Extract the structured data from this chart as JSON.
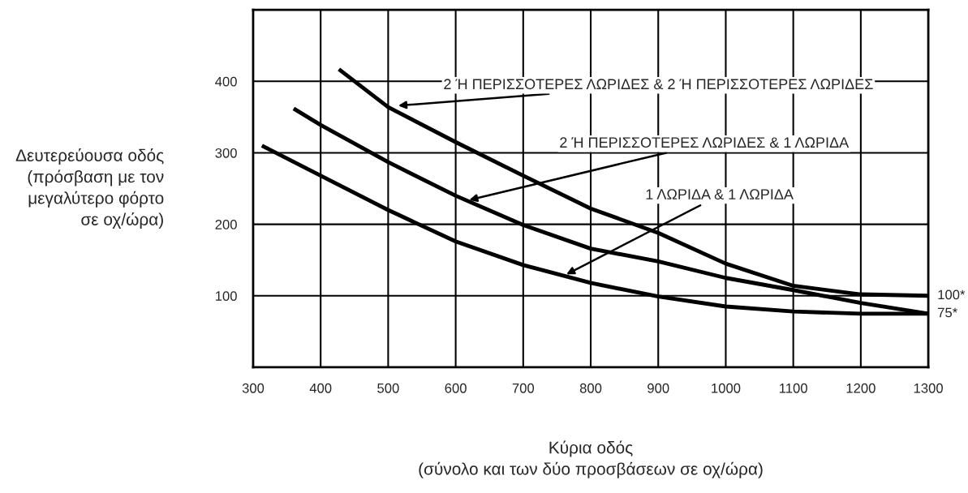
{
  "chart_data": {
    "type": "line",
    "xlabel": "Κύρια οδός\n(σύνολο και των δύο προσβάσεων σε οχ/ώρα)",
    "ylabel": "Δευτερεύουσα οδός\n(πρόσβαση με τον\nμεγαλύτερο φόρτο\nσε οχ/ώρα)",
    "xlim": [
      300,
      1300
    ],
    "xticks": [
      300,
      400,
      500,
      600,
      700,
      800,
      900,
      1000,
      1100,
      1200,
      1300
    ],
    "ylim": [
      0,
      500
    ],
    "yticks": [
      100,
      200,
      300,
      400
    ],
    "grid": true,
    "legend": false,
    "marker": "none",
    "line_style": "solid",
    "series": [
      {
        "color": "#000000",
        "x": [
          427,
          500,
          600,
          700,
          800,
          900,
          1000,
          1100,
          1200,
          1300
        ],
        "values": [
          417,
          364,
          315,
          268,
          222,
          188,
          145,
          114,
          102,
          100
        ]
      },
      {
        "color": "#000000",
        "x": [
          360,
          400,
          500,
          600,
          700,
          800,
          900,
          1000,
          1100,
          1200,
          1300
        ],
        "values": [
          362,
          339,
          287,
          240,
          199,
          166,
          148,
          125,
          108,
          90,
          75
        ]
      },
      {
        "color": "#000000",
        "x": [
          313,
          400,
          500,
          600,
          700,
          800,
          900,
          1000,
          1100,
          1200,
          1300
        ],
        "values": [
          310,
          268,
          220,
          176,
          143,
          118,
          99,
          85,
          78,
          75,
          75
        ]
      }
    ],
    "annotations": [
      {
        "text": "2 Ή ΠΕΡΙΣΣΟΤΕΡΕΣ ΛΩΡΙΔΕΣ & 2 Ή ΠΕΡΙΣΣΟΤΕΡΕΣ ΛΩΡΙΔΕΣ",
        "x": 515,
        "y": 366
      },
      {
        "text": "2 Ή ΠΕΡΙΣΣΟΤΕΡΕΣ ΛΩΡΙΔΕΣ & 1 ΛΩΡΙΔΑ",
        "x": 620,
        "y": 234
      },
      {
        "text": "1 ΛΩΡΙΔΑ & 1 ΛΩΡΙΔΑ",
        "x": 764,
        "y": 130
      },
      {
        "text": "100*",
        "x": 1300,
        "y": 100
      },
      {
        "text": "75*",
        "x": 1300,
        "y": 75
      }
    ]
  }
}
